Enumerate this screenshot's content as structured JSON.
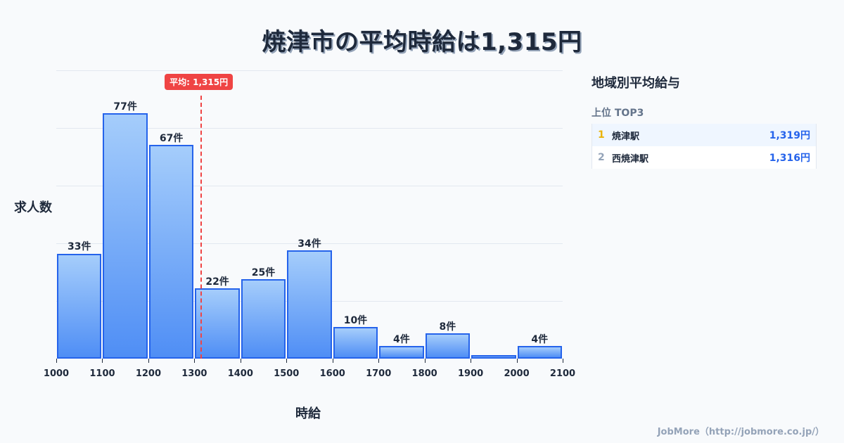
{
  "title": "焼津市の平均時給は1,315円",
  "chart_data": {
    "type": "bar",
    "title": "焼津市の平均時給は1,315円",
    "xlabel": "時給",
    "ylabel": "求人数",
    "bins": [
      1000,
      1100,
      1200,
      1300,
      1400,
      1500,
      1600,
      1700,
      1800,
      1900,
      2000,
      2100
    ],
    "categories": [
      "1000-1100",
      "1100-1200",
      "1200-1300",
      "1300-1400",
      "1400-1500",
      "1500-1600",
      "1600-1700",
      "1700-1800",
      "1800-1900",
      "1900-2000",
      "2000-2100"
    ],
    "values": [
      33,
      77,
      67,
      22,
      25,
      34,
      10,
      4,
      8,
      1,
      4
    ],
    "value_labels": [
      "33件",
      "77件",
      "67件",
      "22件",
      "25件",
      "34件",
      "10件",
      "4件",
      "8件",
      "",
      "4件"
    ],
    "x_tick_labels": [
      "1000",
      "1100",
      "1200",
      "1300",
      "1400",
      "1500",
      "1600",
      "1700",
      "1800",
      "1900",
      "2000",
      "2100"
    ],
    "mean": 1315,
    "mean_label": "平均: 1,315円",
    "ylim": [
      0,
      90.5
    ],
    "grid": true
  },
  "sidebar": {
    "title": "地域別平均給与",
    "subtitle": "上位 TOP3",
    "ranks": [
      {
        "rank": "1",
        "name": "焼津駅",
        "value": "1,319円",
        "rank_color": "#eab308"
      },
      {
        "rank": "2",
        "name": "西焼津駅",
        "value": "1,316円",
        "rank_color": "#94a3b8"
      }
    ]
  },
  "footer": "JobMore（http://jobmore.co.jp/）",
  "colors": {
    "bar_border": "#2563eb",
    "bar_top": "#a5cdfb",
    "bar_bottom": "#4f8ef5",
    "mean_line": "#ef4444",
    "text": "#1e293b"
  }
}
